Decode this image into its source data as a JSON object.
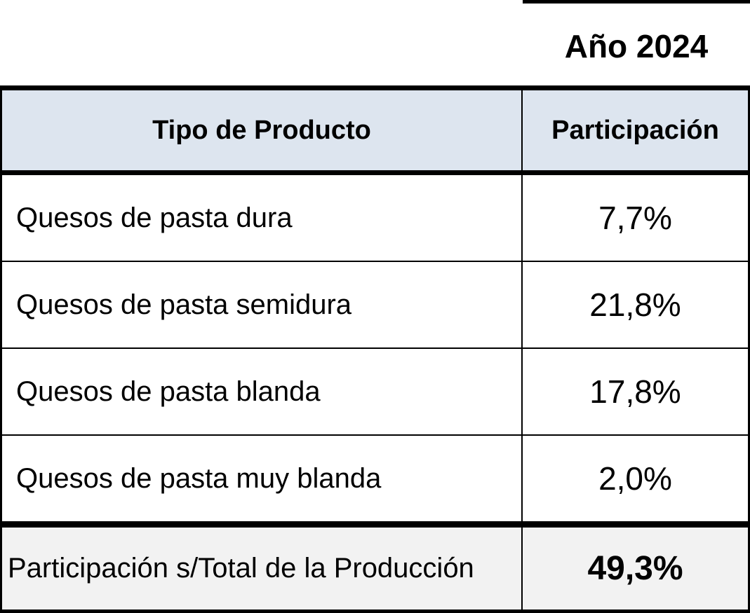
{
  "year_label": "Año 2024",
  "table": {
    "headers": [
      "Tipo de Producto",
      "Participación"
    ],
    "rows": [
      {
        "product": "Quesos de pasta dura",
        "share": "7,7%"
      },
      {
        "product": "Quesos de pasta semidura",
        "share": "21,8%"
      },
      {
        "product": "Quesos de pasta blanda",
        "share": "17,8%"
      },
      {
        "product": "Quesos de pasta muy blanda",
        "share": "2,0%"
      }
    ],
    "total": {
      "label": "Participación s/Total de la Producción",
      "share": "49,3%"
    }
  },
  "colors": {
    "header_background": "#dde5ef",
    "total_background": "#f2f2f2",
    "border": "#000000"
  }
}
